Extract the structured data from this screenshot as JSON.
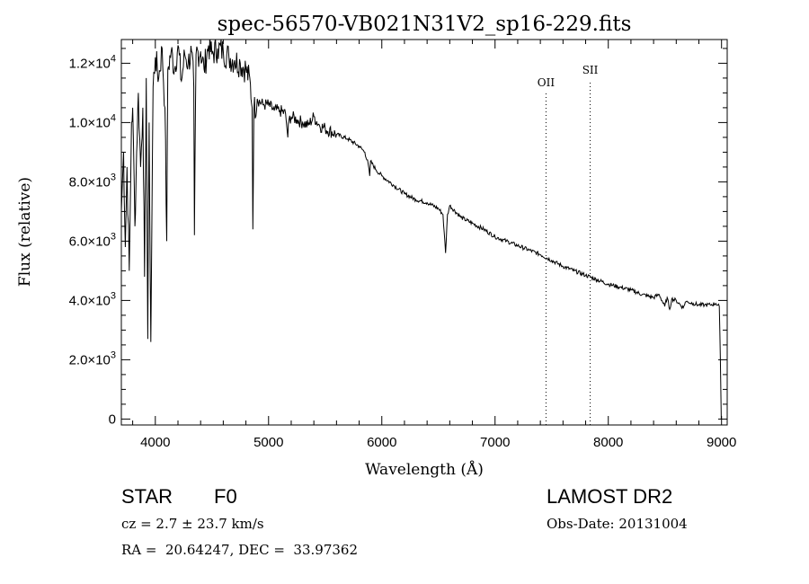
{
  "chart_data": {
    "type": "line",
    "title": "spec-56570-VB021N31V2_sp16-229.fits",
    "xlabel": "Wavelength (Å)",
    "ylabel": "Flux (relative)",
    "xlim": [
      3700,
      9050
    ],
    "ylim": [
      -200,
      12800
    ],
    "grid": false,
    "x_ticks": [
      "4000",
      "5000",
      "6000",
      "7000",
      "8000",
      "9000"
    ],
    "y_ticks": [
      {
        "value": 0,
        "mantissa": "0",
        "exp": ""
      },
      {
        "value": 2000,
        "mantissa": "2.0×10",
        "exp": "3"
      },
      {
        "value": 4000,
        "mantissa": "4.0×10",
        "exp": "3"
      },
      {
        "value": 6000,
        "mantissa": "6.0×10",
        "exp": "3"
      },
      {
        "value": 8000,
        "mantissa": "8.0×10",
        "exp": "3"
      },
      {
        "value": 10000,
        "mantissa": "1.0×10",
        "exp": "4"
      },
      {
        "value": 12000,
        "mantissa": "1.2×10",
        "exp": "4"
      }
    ],
    "line_markers": [
      {
        "label": "OII",
        "x": 7450
      },
      {
        "label": "SII",
        "x": 7840
      }
    ],
    "series": [
      {
        "x": [
          3700,
          3720,
          3735,
          3750,
          3770,
          3790,
          3800,
          3820,
          3835,
          3850,
          3870,
          3890,
          3905,
          3920,
          3933,
          3945,
          3960,
          3968,
          3980,
          4000,
          4030,
          4060,
          4085,
          4101,
          4110,
          4140,
          4170,
          4200,
          4230,
          4260,
          4290,
          4320,
          4340,
          4345,
          4360,
          4400,
          4430,
          4470,
          4500,
          4550,
          4600,
          4650,
          4700,
          4750,
          4800,
          4840,
          4855,
          4861,
          4870,
          4900,
          4950,
          5000,
          5050,
          5100,
          5150,
          5170,
          5180,
          5200,
          5250,
          5300,
          5350,
          5400,
          5450,
          5500,
          5600,
          5700,
          5800,
          5850,
          5880,
          5893,
          5900,
          5950,
          6000,
          6100,
          6200,
          6300,
          6400,
          6500,
          6540,
          6563,
          6580,
          6600,
          6700,
          6800,
          6900,
          7000,
          7100,
          7200,
          7300,
          7400,
          7500,
          7600,
          7700,
          7800,
          7900,
          8000,
          8100,
          8200,
          8300,
          8400,
          8450,
          8498,
          8520,
          8542,
          8560,
          8600,
          8662,
          8680,
          8700,
          8750,
          8800,
          8850,
          8900,
          8950,
          8980,
          8990,
          8998
        ],
        "y": [
          7000,
          9000,
          5800,
          8500,
          5000,
          10000,
          10500,
          6500,
          9000,
          11000,
          8500,
          10500,
          4800,
          11500,
          2700,
          10000,
          2600,
          6000,
          11200,
          12200,
          11500,
          12500,
          10500,
          6000,
          11800,
          12400,
          11800,
          12600,
          11400,
          12300,
          12000,
          12400,
          11200,
          6200,
          12300,
          12400,
          11800,
          12600,
          12300,
          12500,
          12400,
          12200,
          12100,
          12000,
          11800,
          11300,
          10500,
          6400,
          10400,
          10800,
          10600,
          10600,
          10400,
          10400,
          10300,
          9500,
          10100,
          10200,
          10100,
          10000,
          9900,
          10200,
          9900,
          9800,
          9600,
          9450,
          9200,
          9000,
          8600,
          8200,
          8700,
          8400,
          8200,
          7900,
          7600,
          7400,
          7300,
          7100,
          6900,
          5600,
          6900,
          7200,
          6800,
          6600,
          6400,
          6150,
          6000,
          5850,
          5700,
          5550,
          5350,
          5150,
          5000,
          4850,
          4700,
          4550,
          4450,
          4350,
          4200,
          4100,
          4200,
          3800,
          4100,
          3700,
          4050,
          4000,
          3750,
          3950,
          3950,
          3900,
          3850,
          3850,
          3850,
          3900,
          3800,
          2000,
          0
        ]
      }
    ]
  },
  "footer": {
    "object_class": "STAR",
    "subclass": "F0",
    "survey": "LAMOST DR2",
    "cz": "cz = 2.7 ± 23.7 km/s",
    "obs_date": "Obs-Date: 20131004",
    "coords": "RA =  20.64247, DEC =  33.97362"
  }
}
